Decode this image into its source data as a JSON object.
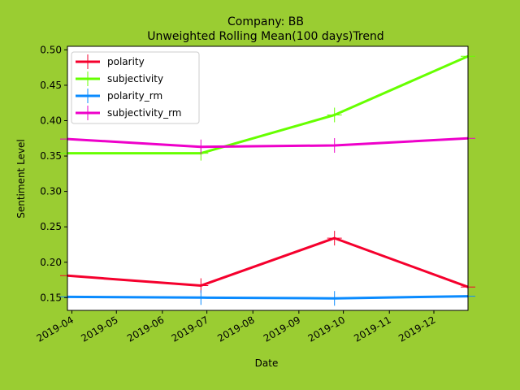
{
  "chart_data": {
    "type": "line",
    "title_line1": "Company: BB",
    "title_line2": "Unweighted Rolling Mean(100 days)Trend",
    "xlabel": "Date",
    "ylabel": "Sentiment Level",
    "x_dates": [
      "2019-03-29",
      "2019-06-27",
      "2019-09-25",
      "2019-12-24"
    ],
    "xlim": [
      "2019-03-29",
      "2019-12-24"
    ],
    "ylim": [
      0.132,
      0.505
    ],
    "x_ticks": [
      "2019-04",
      "2019-05",
      "2019-06",
      "2019-07",
      "2019-08",
      "2019-09",
      "2019-10",
      "2019-11",
      "2019-12"
    ],
    "x_tick_dates": [
      "2019-04-01",
      "2019-05-01",
      "2019-06-01",
      "2019-07-01",
      "2019-08-01",
      "2019-09-01",
      "2019-10-01",
      "2019-11-01",
      "2019-12-01"
    ],
    "y_ticks": [
      "0.15",
      "0.20",
      "0.25",
      "0.30",
      "0.35",
      "0.40",
      "0.45",
      "0.50"
    ],
    "y_tick_values": [
      0.15,
      0.2,
      0.25,
      0.3,
      0.35,
      0.4,
      0.45,
      0.5
    ],
    "legend_position": "upper-left",
    "grid": false,
    "series": [
      {
        "name": "polarity",
        "color": "#f5002d",
        "values": [
          0.181,
          0.167,
          0.234,
          0.165
        ]
      },
      {
        "name": "subjectivity",
        "color": "#66ff00",
        "values": [
          0.354,
          0.354,
          0.408,
          0.491
        ]
      },
      {
        "name": "polarity_rm",
        "color": "#0a8bff",
        "values": [
          0.151,
          0.15,
          0.149,
          0.152
        ]
      },
      {
        "name": "subjectivity_rm",
        "color": "#ee00ca",
        "values": [
          0.374,
          0.363,
          0.365,
          0.375
        ]
      }
    ]
  },
  "colors": {
    "page_background": "#9acd32",
    "plot_background": "#ffffff"
  }
}
